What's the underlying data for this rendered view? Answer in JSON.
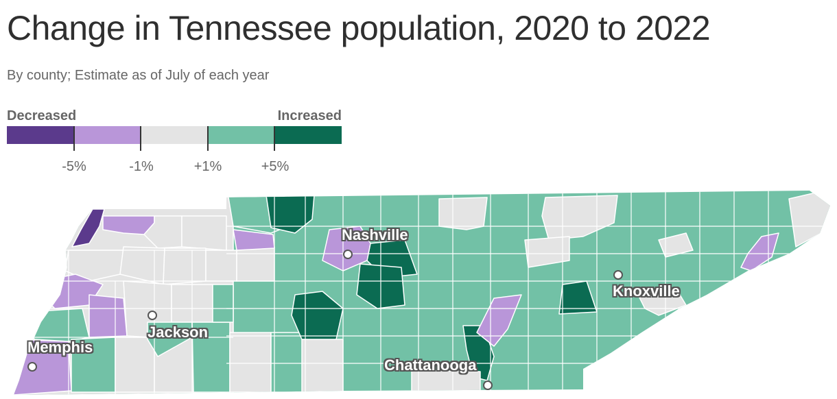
{
  "title": "Change in Tennessee population, 2020 to 2022",
  "subtitle": "By county; Estimate as of July of each year",
  "legend": {
    "left_label": "Decreased",
    "right_label": "Increased",
    "tick_labels": [
      "-5%",
      "-1%",
      "+1%",
      "+5%"
    ],
    "colors": [
      "#5b3a8c",
      "#b996d9",
      "#e4e4e4",
      "#72c1a6",
      "#0b6b52"
    ]
  },
  "cities": {
    "nashville": "Nashville",
    "knoxville": "Knoxville",
    "jackson": "Jackson",
    "memphis": "Memphis",
    "chattanooga": "Chattanooga"
  },
  "colors": {
    "strong_decrease": "#5b3a8c",
    "decrease": "#b996d9",
    "stable": "#e4e4e4",
    "increase": "#72c1a6",
    "strong_increase": "#0b6b52",
    "border": "#ffffff"
  }
}
